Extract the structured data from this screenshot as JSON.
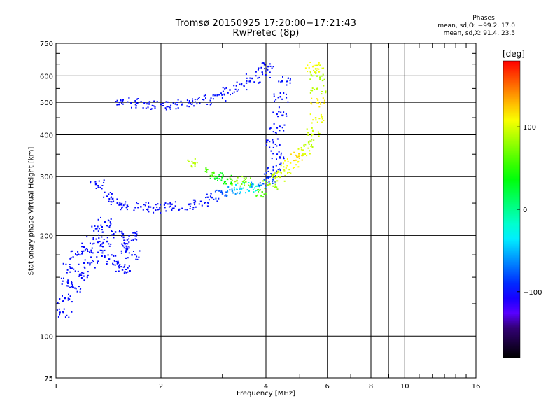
{
  "header": {
    "title": "Tromsø 20150925 17:20:00−17:21:43",
    "subtitle": "RwPretec (8p)"
  },
  "phase_box": {
    "title": "Phases",
    "line_o": "mean, sd,O: −99.2, 17.0",
    "line_x": "mean, sd,X:  91.4, 23.5"
  },
  "colorbar": {
    "unit_label": "[deg]",
    "ticks": [
      "100",
      "0",
      "−100"
    ],
    "tick_values": [
      100,
      0,
      -100
    ],
    "range": [
      -180,
      180
    ]
  },
  "chart_data": {
    "type": "scatter",
    "title": "Tromsø 20150925 17:20:00−17:21:43",
    "subtitle": "RwPretec (8p)",
    "xlabel": "Frequency [MHz]",
    "ylabel": "Stationary phase Virtual Height [km]",
    "x_scale": "log",
    "y_scale": "log",
    "xlim": [
      1,
      16
    ],
    "ylim": [
      75,
      750
    ],
    "x_ticks": [
      1,
      2,
      4,
      6,
      8,
      10,
      16
    ],
    "x_tick_labels": [
      "1",
      "2",
      "4",
      "6",
      "8",
      "10",
      "16"
    ],
    "y_ticks": [
      75,
      100,
      200,
      300,
      400,
      500,
      600,
      750
    ],
    "y_tick_labels": [
      "75",
      "100",
      "200",
      "300",
      "400",
      "500",
      "600",
      "750"
    ],
    "grid": true,
    "color_encoding": "phase (deg)",
    "series": [
      {
        "x": [
          1.06,
          1.12,
          1.18,
          1.25,
          1.32,
          1.4,
          1.48,
          1.57,
          1.65,
          1.05,
          1.1,
          1.2,
          1.3,
          1.42,
          1.55,
          1.62,
          1.08,
          1.15,
          1.28,
          1.38,
          1.5,
          1.6
        ],
        "y": [
          130,
          140,
          152,
          165,
          178,
          192,
          205,
          190,
          175,
          118,
          160,
          185,
          210,
          170,
          158,
          200,
          145,
          175,
          195,
          220,
          165,
          182
        ],
        "phase": [
          -100,
          -98,
          -102,
          -99,
          -97,
          -101,
          -100,
          -103,
          -98,
          -100,
          -99,
          -102,
          -97,
          -100,
          -101,
          -98,
          -99,
          -100,
          -102,
          -98,
          -100,
          -99
        ]
      },
      {
        "x": [
          1.3,
          1.4,
          1.5,
          1.6,
          1.75,
          1.9,
          2.05,
          2.2,
          2.4,
          2.6,
          2.8,
          3.0,
          3.2,
          3.4,
          3.6,
          3.8,
          4.0,
          4.1,
          4.2,
          4.3
        ],
        "y": [
          285,
          262,
          250,
          246,
          244,
          243,
          243,
          245,
          248,
          253,
          260,
          267,
          272,
          276,
          280,
          284,
          290,
          300,
          320,
          350
        ],
        "phase": [
          -100,
          -100,
          -101,
          -99,
          -100,
          -102,
          -98,
          -100,
          -99,
          -100,
          -95,
          -80,
          -60,
          -40,
          -20,
          -60,
          -80,
          -90,
          -95,
          -98
        ]
      },
      {
        "x": [
          4.2,
          4.3,
          4.35,
          4.4,
          4.45
        ],
        "y": [
          380,
          420,
          470,
          520,
          580
        ],
        "phase": [
          -100,
          -98,
          -99,
          -100,
          -97
        ]
      },
      {
        "x": [
          1.55,
          1.7,
          1.85,
          2.0,
          2.2,
          2.4,
          2.65,
          2.9,
          3.15,
          3.4,
          3.65,
          3.9,
          4.05
        ],
        "y": [
          505,
          498,
          495,
          494,
          495,
          500,
          510,
          525,
          545,
          565,
          590,
          615,
          640
        ],
        "phase": [
          -100,
          -99,
          -100,
          -101,
          -98,
          -100,
          -99,
          -97,
          -100,
          -99,
          -98,
          -100,
          -99
        ]
      },
      {
        "x": [
          3.9,
          4.1,
          4.3,
          4.5,
          4.7,
          4.9,
          5.1,
          5.3,
          5.45,
          5.55,
          5.6,
          5.62,
          5.6,
          5.55,
          5.45
        ],
        "y": [
          270,
          285,
          300,
          315,
          330,
          345,
          360,
          380,
          410,
          450,
          500,
          550,
          600,
          630,
          640
        ],
        "phase": [
          60,
          80,
          95,
          100,
          110,
          120,
          100,
          90,
          95,
          105,
          115,
          90,
          85,
          100,
          110
        ]
      },
      {
        "x": [
          2.5,
          2.7,
          2.9,
          3.1,
          3.3,
          3.5
        ],
        "y": [
          330,
          310,
          300,
          295,
          292,
          290
        ],
        "phase": [
          90,
          60,
          30,
          40,
          80,
          70
        ]
      }
    ]
  }
}
